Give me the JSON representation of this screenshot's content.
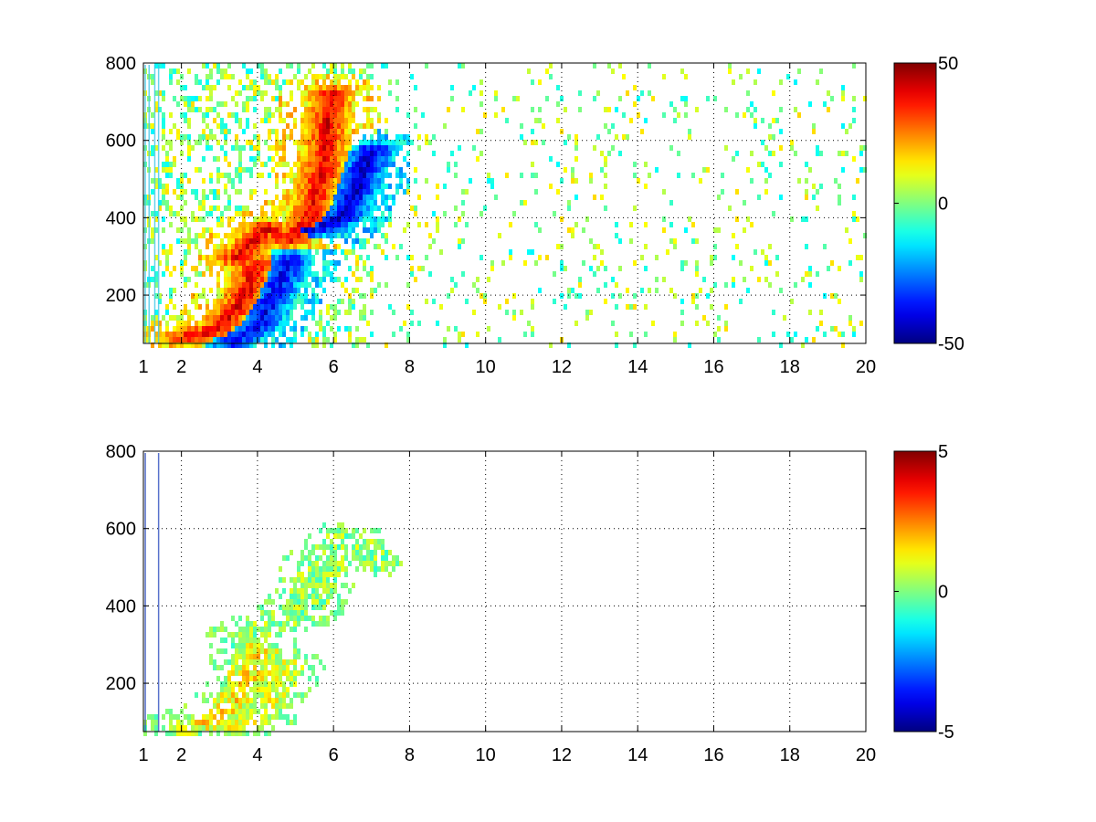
{
  "chart_data": [
    {
      "type": "heatmap",
      "title": "",
      "xlabel": "",
      "ylabel": "",
      "xlim": [
        1,
        20
      ],
      "ylim": [
        75,
        800
      ],
      "grid": true,
      "x_ticks": [
        "1",
        "2",
        "4",
        "6",
        "8",
        "10",
        "12",
        "14",
        "16",
        "18",
        "20"
      ],
      "x_tick_values": [
        1,
        2,
        4,
        6,
        8,
        10,
        12,
        14,
        16,
        18,
        20
      ],
      "y_ticks": [
        "200",
        "400",
        "600",
        "800"
      ],
      "y_tick_values": [
        200,
        400,
        600,
        800
      ],
      "colorbar": {
        "colormap": "jet",
        "min": -50,
        "max": 50,
        "labels": [
          "50",
          "0",
          "-50"
        ]
      },
      "features": [
        {
          "name": "lower positive ridge",
          "points": [
            [
              1.9,
              95
            ],
            [
              2.8,
              115
            ],
            [
              3.3,
              160
            ],
            [
              3.7,
              215
            ],
            [
              3.9,
              290
            ]
          ],
          "value": 40
        },
        {
          "name": "lower negative ridge",
          "points": [
            [
              3.3,
              85
            ],
            [
              4.0,
              130
            ],
            [
              4.4,
              210
            ],
            [
              4.8,
              300
            ]
          ],
          "value": -40
        },
        {
          "name": "upper positive ridge",
          "points": [
            [
              3.4,
              300
            ],
            [
              4.2,
              380
            ],
            [
              4.8,
              350
            ],
            [
              5.3,
              400
            ],
            [
              5.7,
              550
            ],
            [
              5.9,
              730
            ]
          ],
          "value": 40
        },
        {
          "name": "upper negative ridge",
          "points": [
            [
              5.0,
              370
            ],
            [
              5.8,
              385
            ],
            [
              6.3,
              420
            ],
            [
              6.7,
              520
            ],
            [
              7.0,
              580
            ]
          ],
          "value": -45
        }
      ]
    },
    {
      "type": "heatmap",
      "title": "",
      "xlabel": "",
      "ylabel": "",
      "xlim": [
        1,
        20
      ],
      "ylim": [
        75,
        800
      ],
      "grid": true,
      "x_ticks": [
        "1",
        "2",
        "4",
        "6",
        "8",
        "10",
        "12",
        "14",
        "16",
        "18",
        "20"
      ],
      "x_tick_values": [
        1,
        2,
        4,
        6,
        8,
        10,
        12,
        14,
        16,
        18,
        20
      ],
      "y_ticks": [
        "200",
        "400",
        "600",
        "800"
      ],
      "y_tick_values": [
        200,
        400,
        600,
        800
      ],
      "colorbar": {
        "colormap": "jet",
        "min": -5,
        "max": 5,
        "labels": [
          "5",
          "0",
          "-5"
        ]
      },
      "features": [
        {
          "name": "lower ridge",
          "points": [
            [
              2.0,
              95
            ],
            [
              2.8,
              110
            ],
            [
              3.3,
              150
            ],
            [
              3.7,
              210
            ],
            [
              3.9,
              290
            ]
          ],
          "value": 1.5
        },
        {
          "name": "lower side ridge",
          "points": [
            [
              3.4,
              90
            ],
            [
              4.0,
              130
            ],
            [
              4.4,
              210
            ],
            [
              4.6,
              250
            ]
          ],
          "value": 1
        },
        {
          "name": "upper ridge",
          "points": [
            [
              3.6,
              320
            ],
            [
              4.5,
              370
            ],
            [
              5.2,
              400
            ],
            [
              5.7,
              520
            ],
            [
              6.3,
              580
            ],
            [
              7.2,
              520
            ]
          ],
          "value": 0.2
        }
      ]
    }
  ]
}
